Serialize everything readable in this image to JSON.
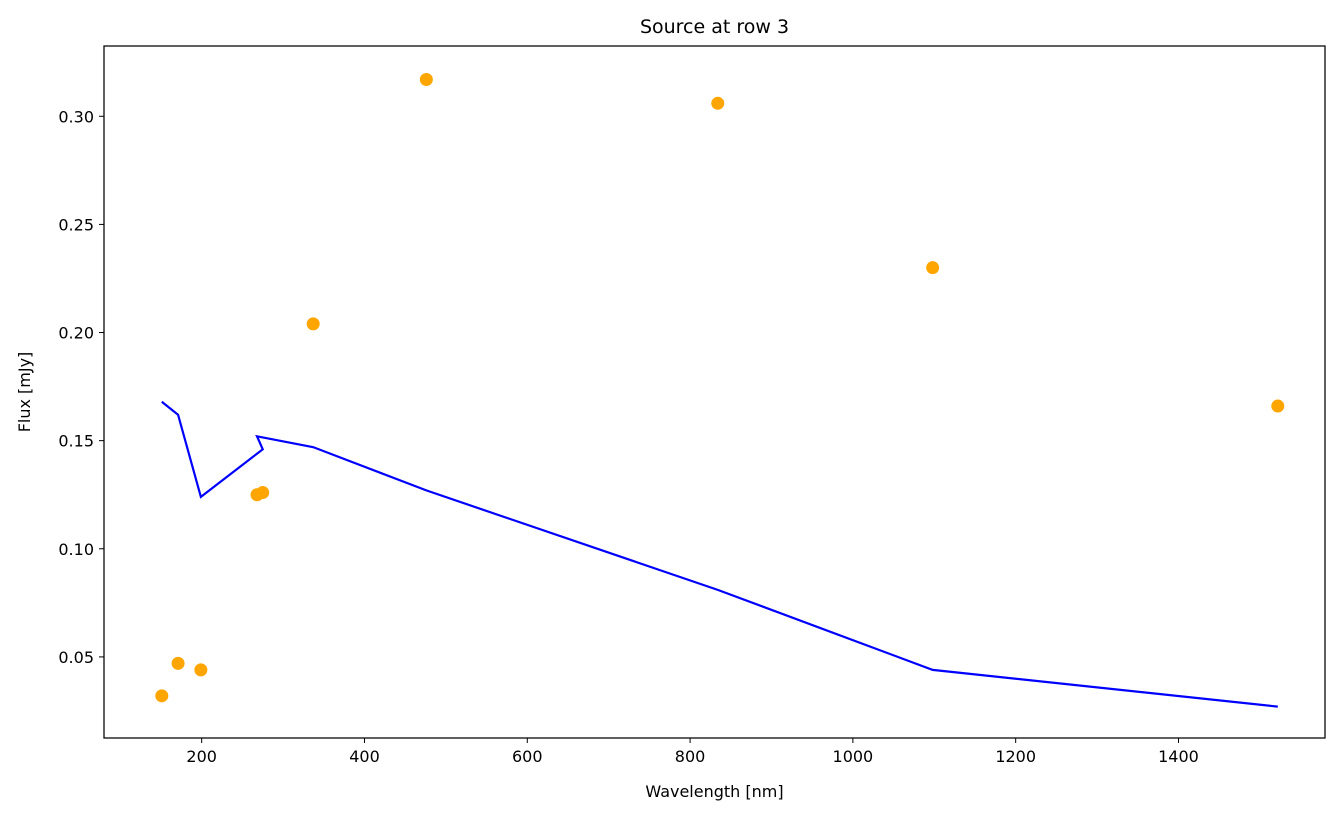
{
  "chart_data": {
    "type": "scatter",
    "title": "Source at row 3",
    "xlabel": "Wavelength [nm]",
    "ylabel": "Flux [mJy]",
    "xlim": [
      80,
      1580
    ],
    "ylim": [
      0.0125,
      0.3325
    ],
    "xticks": [
      200,
      400,
      600,
      800,
      1000,
      1200,
      1400
    ],
    "yticks": [
      0.05,
      0.1,
      0.15,
      0.2,
      0.25,
      0.3
    ],
    "xtick_labels": [
      "200",
      "400",
      "600",
      "800",
      "1000",
      "1200",
      "1400"
    ],
    "ytick_labels": [
      "0.05",
      "0.10",
      "0.15",
      "0.20",
      "0.25",
      "0.30"
    ],
    "grid": false,
    "series": [
      {
        "type": "scatter",
        "color": "#ffa500",
        "points": [
          {
            "x": 151,
            "y": 0.032
          },
          {
            "x": 171,
            "y": 0.047
          },
          {
            "x": 199,
            "y": 0.044
          },
          {
            "x": 268,
            "y": 0.125
          },
          {
            "x": 275,
            "y": 0.126
          },
          {
            "x": 337,
            "y": 0.204
          },
          {
            "x": 476,
            "y": 0.317
          },
          {
            "x": 834,
            "y": 0.306
          },
          {
            "x": 1098,
            "y": 0.23
          },
          {
            "x": 1522,
            "y": 0.166
          }
        ]
      },
      {
        "type": "line",
        "color": "#0000ff",
        "points": [
          {
            "x": 151,
            "y": 0.168
          },
          {
            "x": 171,
            "y": 0.162
          },
          {
            "x": 199,
            "y": 0.124
          },
          {
            "x": 275,
            "y": 0.146
          },
          {
            "x": 268,
            "y": 0.152
          },
          {
            "x": 337,
            "y": 0.147
          },
          {
            "x": 476,
            "y": 0.127
          },
          {
            "x": 834,
            "y": 0.081
          },
          {
            "x": 1098,
            "y": 0.044
          },
          {
            "x": 1522,
            "y": 0.027
          }
        ]
      }
    ]
  }
}
